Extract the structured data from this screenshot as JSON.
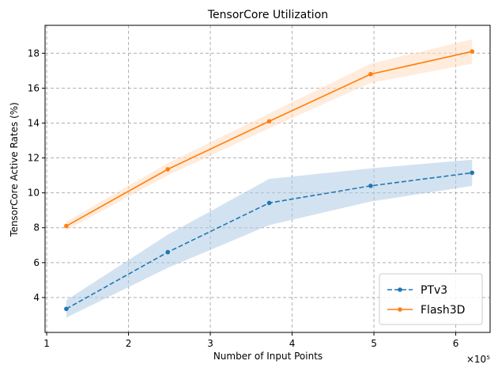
{
  "chart_data": {
    "type": "line",
    "title": "TensorCore Utilization",
    "xlabel": "Number of Input Points",
    "ylabel": "TensorCore Active Rates (%)",
    "x_scale_label": "×10⁵",
    "x_scale_factor": 100000,
    "xlim": [
      0.98,
      6.42
    ],
    "ylim": [
      2.0,
      19.6
    ],
    "x_ticks": [
      1,
      2,
      3,
      4,
      5,
      6
    ],
    "y_ticks": [
      4,
      6,
      8,
      10,
      12,
      14,
      16,
      18
    ],
    "grid": true,
    "legend_position": "lower right",
    "series": [
      {
        "name": "PTv3",
        "color": "#1f77b4",
        "linestyle": "dashed",
        "marker": "circle",
        "x": [
          1.24,
          2.48,
          3.72,
          4.96,
          6.2
        ],
        "values": [
          3.35,
          6.6,
          9.42,
          10.4,
          11.15
        ],
        "band_lower": [
          2.85,
          5.7,
          8.15,
          9.5,
          10.4
        ],
        "band_upper": [
          3.85,
          7.6,
          10.8,
          11.4,
          11.9
        ],
        "band_color": "#aecbe3"
      },
      {
        "name": "Flash3D",
        "color": "#ff7f0e",
        "linestyle": "solid",
        "marker": "circle",
        "x": [
          1.24,
          2.48,
          3.72,
          4.96,
          6.2
        ],
        "values": [
          8.1,
          11.35,
          14.1,
          16.8,
          18.1
        ],
        "band_lower": [
          7.85,
          11.0,
          13.7,
          16.3,
          17.4
        ],
        "band_upper": [
          8.35,
          11.7,
          14.55,
          17.4,
          18.8
        ],
        "band_color": "#ffdcc0"
      }
    ]
  }
}
